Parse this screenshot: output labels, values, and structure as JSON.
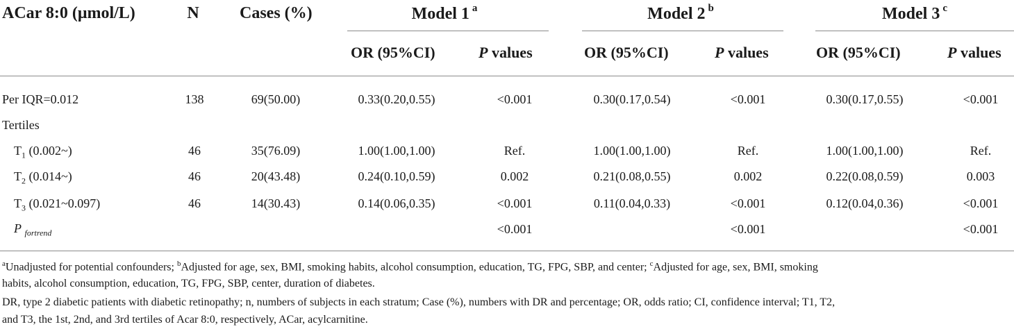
{
  "header": {
    "col_variable": "ACar 8:0 (μmol/L)",
    "col_n": "N",
    "col_cases": "Cases (%)",
    "models": [
      {
        "label": "Model 1",
        "mark": "a"
      },
      {
        "label": "Model 2",
        "mark": "b"
      },
      {
        "label": "Model 3",
        "mark": "c"
      }
    ],
    "sub_or": "OR (95%CI)",
    "sub_p_italic": "P",
    "sub_p_rest": " values"
  },
  "rows": [
    {
      "label": "Per IQR=0.012",
      "n": "138",
      "cases": "69(50.00)",
      "m1_or": "0.33(0.20,0.55)",
      "m1_p": "<0.001",
      "m2_or": "0.30(0.17,0.54)",
      "m2_p": "<0.001",
      "m3_or": "0.30(0.17,0.55)",
      "m3_p": "<0.001"
    },
    {
      "label": "Tertiles"
    },
    {
      "label_main": "T",
      "label_sub": "1",
      "label_rest": " (0.002~)",
      "n": "46",
      "cases": "35(76.09)",
      "m1_or": "1.00(1.00,1.00)",
      "m1_p": "Ref.",
      "m2_or": "1.00(1.00,1.00)",
      "m2_p": "Ref.",
      "m3_or": "1.00(1.00,1.00)",
      "m3_p": "Ref."
    },
    {
      "label_main": "T",
      "label_sub": "2",
      "label_rest": " (0.014~)",
      "n": "46",
      "cases": "20(43.48)",
      "m1_or": "0.24(0.10,0.59)",
      "m1_p": "0.002",
      "m2_or": "0.21(0.08,0.55)",
      "m2_p": "0.002",
      "m3_or": "0.22(0.08,0.59)",
      "m3_p": "0.003"
    },
    {
      "label_main": "T",
      "label_sub": "3",
      "label_rest": " (0.021~0.097)",
      "n": "46",
      "cases": "14(30.43)",
      "m1_or": "0.14(0.06,0.35)",
      "m1_p": "<0.001",
      "m2_or": "0.11(0.04,0.33)",
      "m2_p": "<0.001",
      "m3_or": "0.12(0.04,0.36)",
      "m3_p": "<0.001"
    },
    {
      "label_main": "P",
      "label_sub": "fortrend",
      "m1_p": "<0.001",
      "m2_p": "<0.001",
      "m3_p": "<0.001"
    }
  ],
  "footnotes": {
    "line1": {
      "m_a": "a",
      "t_a": "Unadjusted for potential confounders; ",
      "m_b": "b",
      "t_b": "Adjusted for age, sex, BMI, smoking habits, alcohol consumption, education, TG, FPG, SBP, and center; ",
      "m_c": "c",
      "t_c": "Adjusted for age, sex, BMI, smoking"
    },
    "line2": "habits, alcohol consumption, education, TG, FPG, SBP, center, duration of diabetes.",
    "line3": "DR, type 2 diabetic patients with diabetic retinopathy; n, numbers of subjects in each stratum; Case (%), numbers with DR and percentage; OR, odds ratio; CI, confidence interval; T1, T2,",
    "line4": "and T3, the 1st, 2nd, and 3rd tertiles of Acar 8:0, respectively, ACar, acylcarnitine."
  }
}
